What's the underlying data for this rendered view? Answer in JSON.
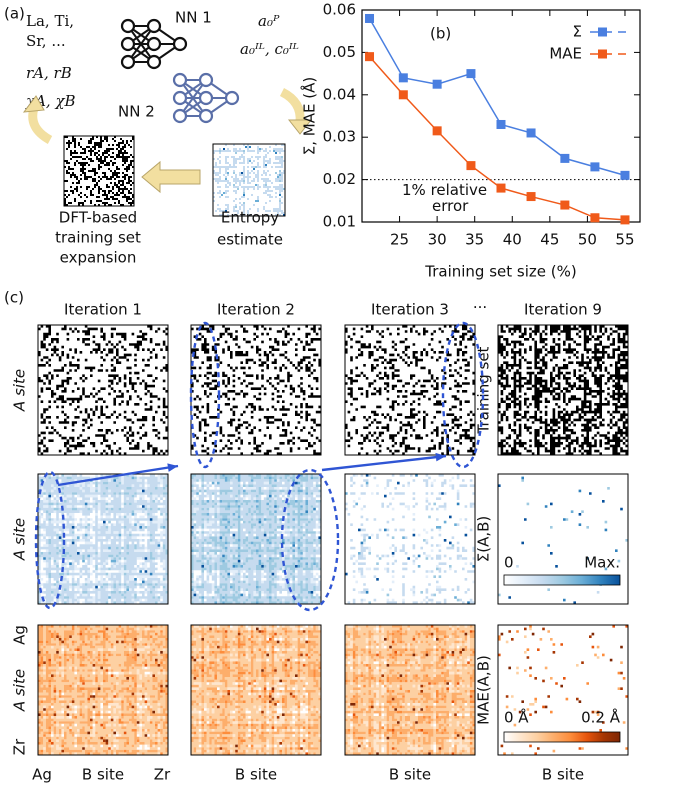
{
  "panel_a": {
    "label": "(a)",
    "features": [
      "La, Ti,",
      "Sr, ...",
      "rA, rB",
      "χA, χB"
    ],
    "nn1": "NN 1",
    "nn2": "NN 2",
    "outputs": [
      "a₀ᴾ",
      "a₀ᴵᴸ, c₀ᴵᴸ"
    ],
    "left_caption": [
      "DFT-based",
      "training set",
      "expansion"
    ],
    "right_caption": [
      "Entropy",
      "estimate"
    ]
  },
  "chart_data": {
    "type": "line",
    "label": "(b)",
    "ylabel": "Σ, MAE (Å)",
    "xlabel": "Training set size (%)",
    "x": [
      21,
      25.5,
      30,
      34.5,
      38.5,
      42.5,
      47,
      51,
      55
    ],
    "series": [
      {
        "name": "Σ",
        "color": "#4a7fe0",
        "values": [
          0.058,
          0.044,
          0.0425,
          0.045,
          0.033,
          0.031,
          0.025,
          0.023,
          0.021
        ]
      },
      {
        "name": "MAE",
        "color": "#f05a1a",
        "values": [
          0.049,
          0.04,
          0.0315,
          0.0233,
          0.018,
          0.016,
          0.014,
          0.011,
          0.0105
        ]
      }
    ],
    "xlim": [
      20,
      57
    ],
    "ylim": [
      0.01,
      0.06
    ],
    "xticks": [
      25,
      30,
      35,
      40,
      45,
      50,
      55
    ],
    "yticks": [
      0.01,
      0.02,
      0.03,
      0.04,
      0.05,
      0.06
    ],
    "hline": 0.02,
    "annotations": [
      "1% relative",
      "error"
    ],
    "legend": "upper right"
  },
  "panel_c": {
    "label": "(c)",
    "columns": [
      "Iteration 1",
      "Iteration 2",
      "Iteration 3",
      "Iteration 9"
    ],
    "ellipsis": "···",
    "row_label": "A site",
    "row_labels_right": [
      "Training set",
      "Σ(A,B)",
      "MAE(A,B)"
    ],
    "y_ends": [
      "Ag",
      "Zr"
    ],
    "x_ends": [
      "Ag",
      "Zr"
    ],
    "x_label": "B site",
    "colorbar_sigma": [
      "0",
      "Max."
    ],
    "colorbar_mae": [
      "0 Å",
      "0.2 Å"
    ]
  }
}
